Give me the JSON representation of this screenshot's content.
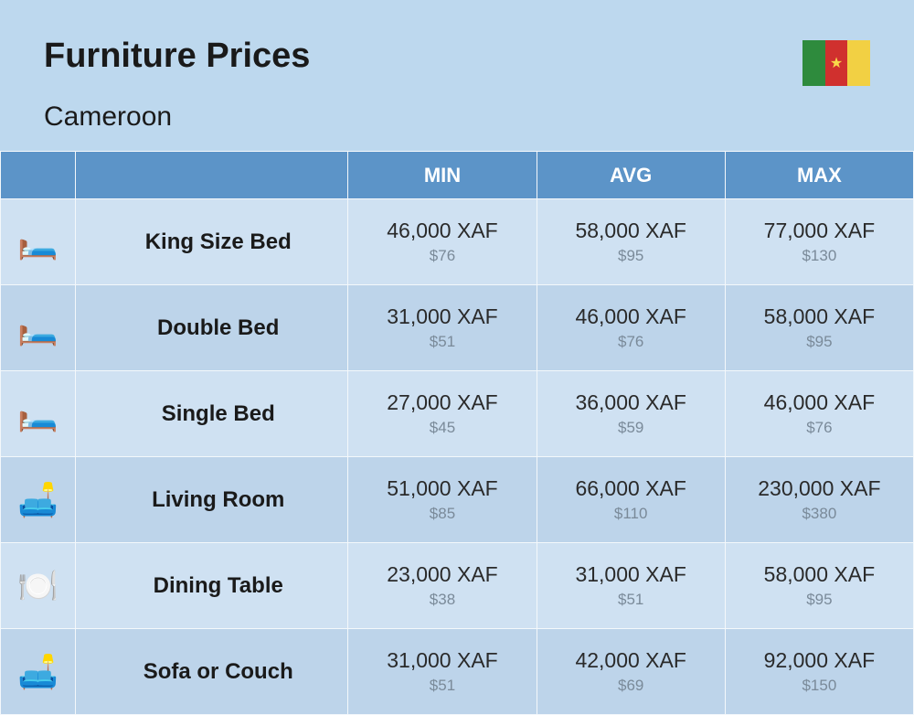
{
  "header": {
    "title": "Furniture Prices",
    "country": "Cameroon"
  },
  "flag": {
    "stripe1_color": "#2e8b3d",
    "stripe2_color": "#d0302e",
    "stripe3_color": "#f2d043",
    "star_color": "#f9d94a"
  },
  "columns": {
    "min": "MIN",
    "avg": "AVG",
    "max": "MAX"
  },
  "colors": {
    "page_bg": "#bdd8ee",
    "header_row_bg": "#5c94c8",
    "header_row_text": "#ffffff",
    "row_even_bg": "#cfe1f2",
    "row_odd_bg": "#bdd4ea",
    "border_color": "#f4f8fb",
    "primary_text": "#2a2a2a",
    "secondary_text": "#7a8a99"
  },
  "rows": [
    {
      "icon": "🛏️",
      "name": "King Size Bed",
      "min": {
        "xaf": "46,000 XAF",
        "usd": "$76"
      },
      "avg": {
        "xaf": "58,000 XAF",
        "usd": "$95"
      },
      "max": {
        "xaf": "77,000 XAF",
        "usd": "$130"
      }
    },
    {
      "icon": "🛏️",
      "name": "Double Bed",
      "min": {
        "xaf": "31,000 XAF",
        "usd": "$51"
      },
      "avg": {
        "xaf": "46,000 XAF",
        "usd": "$76"
      },
      "max": {
        "xaf": "58,000 XAF",
        "usd": "$95"
      }
    },
    {
      "icon": "🛏️",
      "name": "Single Bed",
      "min": {
        "xaf": "27,000 XAF",
        "usd": "$45"
      },
      "avg": {
        "xaf": "36,000 XAF",
        "usd": "$59"
      },
      "max": {
        "xaf": "46,000 XAF",
        "usd": "$76"
      }
    },
    {
      "icon": "🛋️",
      "name": "Living Room",
      "min": {
        "xaf": "51,000 XAF",
        "usd": "$85"
      },
      "avg": {
        "xaf": "66,000 XAF",
        "usd": "$110"
      },
      "max": {
        "xaf": "230,000 XAF",
        "usd": "$380"
      }
    },
    {
      "icon": "🍽️",
      "name": "Dining Table",
      "min": {
        "xaf": "23,000 XAF",
        "usd": "$38"
      },
      "avg": {
        "xaf": "31,000 XAF",
        "usd": "$51"
      },
      "max": {
        "xaf": "58,000 XAF",
        "usd": "$95"
      }
    },
    {
      "icon": "🛋️",
      "name": "Sofa or Couch",
      "min": {
        "xaf": "31,000 XAF",
        "usd": "$51"
      },
      "avg": {
        "xaf": "42,000 XAF",
        "usd": "$69"
      },
      "max": {
        "xaf": "92,000 XAF",
        "usd": "$150"
      }
    }
  ]
}
